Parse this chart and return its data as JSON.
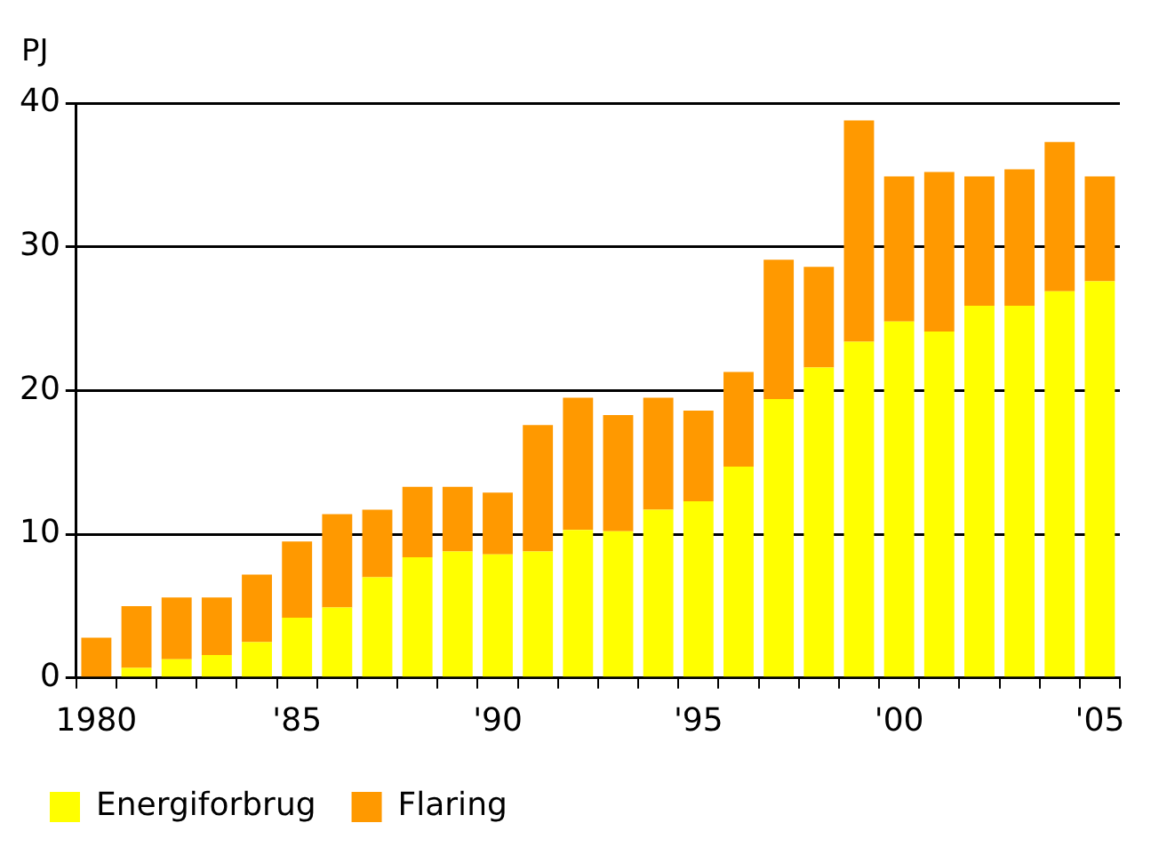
{
  "chart_data": {
    "type": "bar",
    "stacked": true,
    "ylabel": "PJ",
    "categories": [
      "1980",
      null,
      null,
      null,
      null,
      "'85",
      null,
      null,
      null,
      null,
      "'90",
      null,
      null,
      null,
      null,
      "'95",
      null,
      null,
      null,
      null,
      "'00",
      null,
      null,
      null,
      null,
      "'05"
    ],
    "series": [
      {
        "name": "Energiforbrug",
        "color": "#ffff00",
        "values": [
          0,
          0.7,
          1.3,
          1.6,
          2.5,
          4.2,
          4.9,
          7.0,
          8.4,
          8.8,
          8.6,
          8.8,
          10.3,
          10.2,
          11.7,
          12.3,
          14.7,
          19.4,
          21.6,
          23.4,
          24.8,
          24.1,
          25.9,
          25.9,
          26.9,
          27.6
        ]
      },
      {
        "name": "Flaring",
        "color": "#ff9900",
        "values": [
          2.8,
          4.3,
          4.3,
          4.0,
          4.7,
          5.3,
          6.5,
          4.7,
          4.9,
          4.5,
          4.3,
          8.8,
          9.2,
          8.1,
          7.8,
          6.3,
          6.6,
          9.7,
          7.0,
          15.4,
          10.1,
          11.1,
          9.0,
          9.5,
          10.4,
          7.3
        ]
      }
    ],
    "ylim": [
      0,
      40
    ],
    "yticks": [
      0,
      10,
      20,
      30,
      40
    ],
    "grid": "y",
    "legend": "bottom"
  }
}
